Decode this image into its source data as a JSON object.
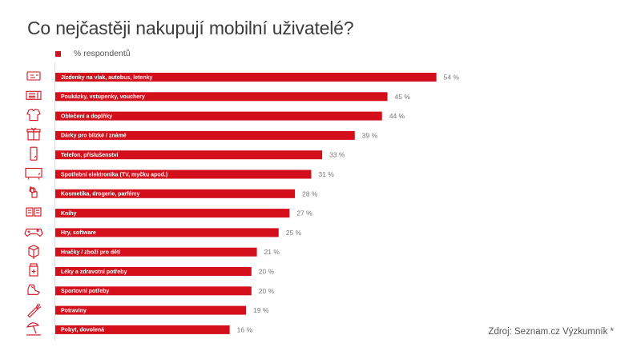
{
  "chart_data": {
    "type": "bar",
    "orientation": "horizontal",
    "title": "Co nejčastěji nakupují mobilní uživatelé?",
    "legend": {
      "label": "% respondentů",
      "placement": "top-left"
    },
    "series": [
      {
        "name": "% respondentů",
        "color": "#d20f1a"
      }
    ],
    "categories": [
      "Jízdenky na vlak, autobus, letenky",
      "Poukázky, vstupenky, vouchery",
      "Oblečení a doplňky",
      "Dárky pro blízké / známé",
      "Telefon, příslušenství",
      "Spotřební elektronika (TV, myčku apod.)",
      "Kosmetika, drogerie, parfémy",
      "Knihy",
      "Hry, software",
      "Hračky / zboží pro děti",
      "Léky a zdravotní potřeby",
      "Sportovní potřeby",
      "Potraviny",
      "Pobyt, dovolená"
    ],
    "values": [
      54,
      45,
      44,
      39,
      33,
      31,
      28,
      27,
      25,
      21,
      20,
      20,
      19,
      16
    ],
    "value_labels": [
      "54 %",
      "45 %",
      "44 %",
      "39 %",
      "33 %",
      "31 %",
      "28 %",
      "27 %",
      "25 %",
      "21 %",
      "20 %",
      "20 %",
      "19 %",
      "16 %"
    ],
    "icons": [
      "ticket-icon",
      "voucher-icon",
      "clothing-icon",
      "gift-icon",
      "phone-icon",
      "tv-icon",
      "cosmetics-icon",
      "book-icon",
      "gamepad-icon",
      "toy-box-icon",
      "medicine-icon",
      "sports-shoe-icon",
      "carrot-icon",
      "beach-umbrella-icon"
    ],
    "grid": false,
    "xlabel": "",
    "ylabel": ""
  },
  "source": "Zdroj: Seznam.cz Výzkumník *"
}
